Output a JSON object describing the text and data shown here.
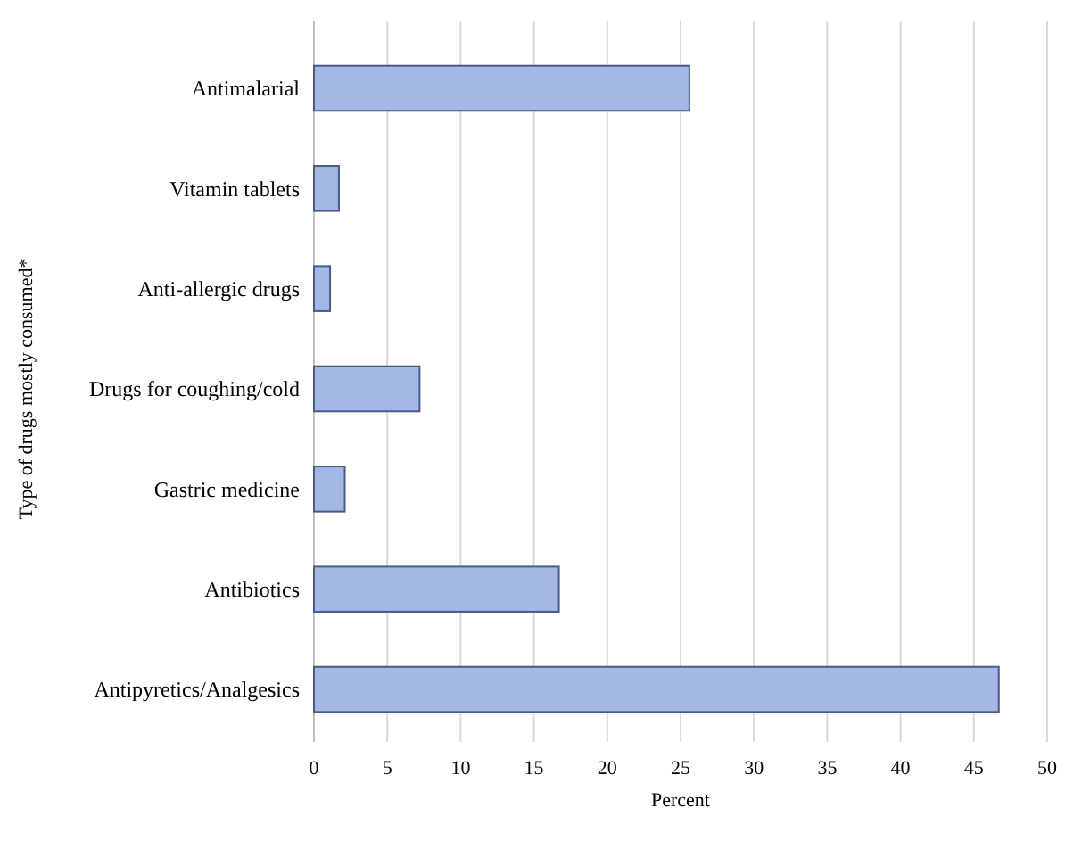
{
  "chart_data": {
    "type": "bar",
    "orientation": "horizontal",
    "xlabel": "Percent",
    "ylabel": "Type of drugs mostly consumed*",
    "categories": [
      "Antimalarial",
      "Vitamin tablets",
      "Anti-allergic drugs",
      "Drugs for coughing/cold",
      "Gastric medicine",
      "Antibiotics",
      "Antipyretics/Analgesics"
    ],
    "values": [
      25.6,
      1.7,
      1.1,
      7.2,
      2.1,
      16.7,
      46.7
    ],
    "color": "#a4b8e8",
    "xlim": [
      0,
      50
    ],
    "xticks": [
      0,
      5,
      10,
      15,
      20,
      25,
      30,
      35,
      40,
      45,
      50
    ],
    "grid": "x"
  }
}
